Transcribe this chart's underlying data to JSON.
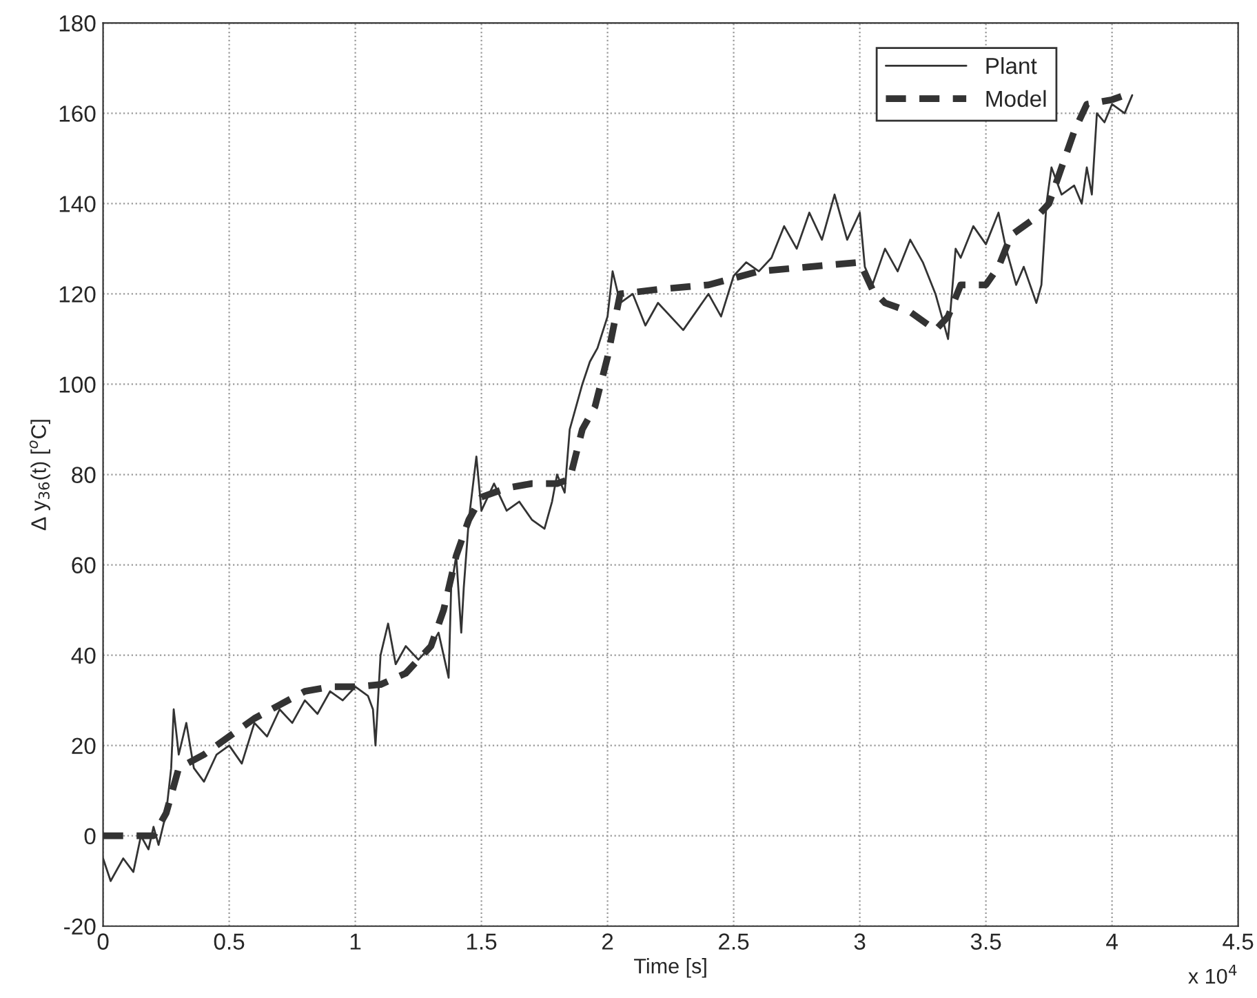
{
  "chart_data": {
    "type": "line",
    "xlabel": "Time [s]",
    "ylabel": "Δ y$_{36}$(t) [$^{o}$C]",
    "xlim": [
      0,
      4.5
    ],
    "xticks": [
      0,
      0.5,
      1,
      1.5,
      2,
      2.5,
      3,
      3.5,
      4,
      4.5
    ],
    "ylim": [
      -20,
      180
    ],
    "yticks": [
      -20,
      0,
      20,
      40,
      60,
      80,
      100,
      120,
      140,
      160,
      180
    ],
    "grid": true,
    "legend": "top right",
    "annotations": [
      "x 10$^{4}$"
    ],
    "series": [
      {
        "name": "Plant",
        "color": "#333333",
        "line_style": "solid",
        "x": [
          0,
          0.03,
          0.08,
          0.12,
          0.15,
          0.18,
          0.2,
          0.22,
          0.25,
          0.27,
          0.28,
          0.3,
          0.33,
          0.36,
          0.4,
          0.45,
          0.5,
          0.55,
          0.6,
          0.65,
          0.7,
          0.75,
          0.8,
          0.85,
          0.9,
          0.95,
          1.0,
          1.05,
          1.07,
          1.08,
          1.1,
          1.13,
          1.16,
          1.2,
          1.25,
          1.3,
          1.33,
          1.35,
          1.37,
          1.38,
          1.4,
          1.42,
          1.43,
          1.45,
          1.48,
          1.5,
          1.55,
          1.6,
          1.65,
          1.7,
          1.75,
          1.78,
          1.8,
          1.83,
          1.85,
          1.9,
          1.93,
          1.96,
          2.0,
          2.02,
          2.05,
          2.1,
          2.15,
          2.2,
          2.3,
          2.4,
          2.45,
          2.5,
          2.55,
          2.6,
          2.65,
          2.7,
          2.75,
          2.8,
          2.85,
          2.9,
          2.95,
          3.0,
          3.02,
          3.05,
          3.1,
          3.15,
          3.2,
          3.25,
          3.3,
          3.35,
          3.38,
          3.4,
          3.45,
          3.5,
          3.55,
          3.58,
          3.62,
          3.65,
          3.7,
          3.72,
          3.74,
          3.76,
          3.8,
          3.85,
          3.88,
          3.9,
          3.92,
          3.94,
          3.97,
          4.0,
          4.05,
          4.08
        ],
        "values": [
          -5,
          -10,
          -5,
          -8,
          0,
          -3,
          2,
          -2,
          5,
          15,
          28,
          18,
          25,
          15,
          12,
          18,
          20,
          16,
          25,
          22,
          28,
          25,
          30,
          27,
          32,
          30,
          33,
          31,
          28,
          20,
          40,
          47,
          38,
          42,
          39,
          42,
          45,
          40,
          35,
          55,
          62,
          45,
          55,
          70,
          84,
          72,
          78,
          72,
          74,
          70,
          68,
          74,
          80,
          76,
          90,
          100,
          105,
          108,
          115,
          125,
          118,
          120,
          113,
          118,
          112,
          120,
          115,
          124,
          127,
          125,
          128,
          135,
          130,
          138,
          132,
          142,
          132,
          138,
          126,
          122,
          130,
          125,
          132,
          127,
          120,
          110,
          130,
          128,
          135,
          131,
          138,
          130,
          122,
          126,
          118,
          122,
          140,
          148,
          142,
          144,
          140,
          148,
          142,
          160,
          158,
          162,
          160,
          164
        ]
      },
      {
        "name": "Model",
        "color": "#333333",
        "line_style": "dashed",
        "x": [
          0,
          0.2,
          0.25,
          0.3,
          0.4,
          0.5,
          0.6,
          0.7,
          0.8,
          0.9,
          1.0,
          1.1,
          1.2,
          1.3,
          1.35,
          1.4,
          1.45,
          1.5,
          1.6,
          1.7,
          1.8,
          1.85,
          1.9,
          1.95,
          2.0,
          2.05,
          2.2,
          2.4,
          2.6,
          2.8,
          3.0,
          3.05,
          3.1,
          3.2,
          3.3,
          3.35,
          3.4,
          3.5,
          3.55,
          3.6,
          3.7,
          3.75,
          3.8,
          3.85,
          3.9,
          4.0,
          4.05
        ],
        "values": [
          0,
          0,
          5,
          15,
          18,
          22,
          26,
          29,
          32,
          33,
          33,
          33.5,
          36,
          42,
          50,
          62,
          70,
          75,
          77,
          78,
          78,
          79,
          90,
          95,
          106,
          120,
          121,
          122,
          125,
          126,
          127,
          121,
          118,
          116,
          112,
          115,
          122,
          122,
          126,
          133,
          137,
          140,
          148,
          156,
          162,
          163,
          164
        ]
      }
    ]
  }
}
